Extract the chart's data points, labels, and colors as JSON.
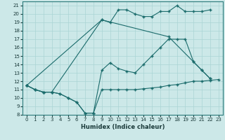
{
  "xlabel": "Humidex (Indice chaleur)",
  "bg_color": "#cce8e8",
  "line_color": "#1a6b6b",
  "grid_color": "#aad4d4",
  "xlim": [
    -0.5,
    23.5
  ],
  "ylim": [
    8,
    21.5
  ],
  "xticks": [
    0,
    1,
    2,
    3,
    4,
    5,
    6,
    7,
    8,
    9,
    10,
    11,
    12,
    13,
    14,
    15,
    16,
    17,
    18,
    19,
    20,
    21,
    22,
    23
  ],
  "yticks": [
    8,
    9,
    10,
    11,
    12,
    13,
    14,
    15,
    16,
    17,
    18,
    19,
    20,
    21
  ],
  "line1_x": [
    0,
    1,
    2,
    3,
    4,
    5,
    6,
    7,
    8,
    9,
    10,
    11,
    12,
    13,
    14,
    15,
    16,
    17,
    18,
    19,
    20,
    21,
    22,
    23
  ],
  "line1_y": [
    11.5,
    11.0,
    10.7,
    10.7,
    10.5,
    10.0,
    9.5,
    8.2,
    8.2,
    11.0,
    11.0,
    11.0,
    11.0,
    11.0,
    11.1,
    11.2,
    11.3,
    11.5,
    11.6,
    11.8,
    12.0,
    12.0,
    12.1,
    12.2
  ],
  "line2_x": [
    0,
    1,
    2,
    3,
    4,
    5,
    6,
    7,
    8,
    9,
    10,
    11,
    12,
    13,
    14,
    15,
    16,
    17,
    18,
    19,
    20,
    21,
    22
  ],
  "line2_y": [
    11.5,
    11.0,
    10.7,
    10.7,
    10.5,
    10.0,
    9.5,
    8.2,
    8.2,
    13.3,
    14.2,
    13.5,
    13.2,
    13.0,
    14.0,
    15.0,
    16.0,
    17.0,
    17.0,
    17.0,
    14.3,
    13.3,
    12.3
  ],
  "line3_x": [
    0,
    1,
    2,
    3,
    9,
    10,
    11,
    12,
    13,
    14,
    15,
    16,
    17,
    18,
    19,
    20,
    21,
    22
  ],
  "line3_y": [
    11.5,
    11.0,
    10.7,
    10.7,
    19.3,
    19.0,
    20.5,
    20.5,
    20.0,
    19.7,
    19.7,
    20.3,
    20.3,
    21.0,
    20.3,
    20.3,
    20.3,
    20.5
  ],
  "line4_x": [
    0,
    9,
    17,
    20,
    21,
    22
  ],
  "line4_y": [
    11.5,
    19.3,
    17.3,
    14.3,
    13.3,
    12.3
  ]
}
